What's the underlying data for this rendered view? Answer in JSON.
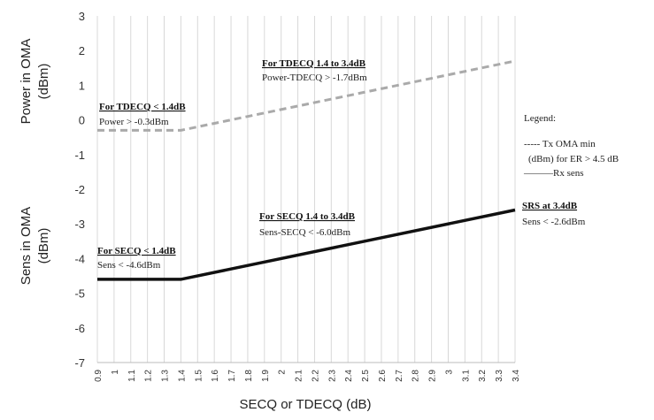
{
  "chart_data": {
    "type": "line",
    "xlabel": "SECQ or TDECQ (dB)",
    "ylabel_top": "Power  in OMA\n(dBm)",
    "ylabel_bottom": "Sens in OMA\n(dBm)",
    "x": [
      0.9,
      1.0,
      1.1,
      1.2,
      1.3,
      1.4,
      1.5,
      1.6,
      1.7,
      1.8,
      1.9,
      2.0,
      2.1,
      2.2,
      2.3,
      2.4,
      2.5,
      2.6,
      2.7,
      2.8,
      2.9,
      3.0,
      3.1,
      3.2,
      3.3,
      3.4
    ],
    "x_tick_labels": [
      "0.9",
      "1",
      "1.1",
      "1.2",
      "1.3",
      "1.4",
      "1.5",
      "1.6",
      "1.7",
      "1.8",
      "1.9",
      "2",
      "2.1",
      "2.2",
      "2.3",
      "2.4",
      "2.5",
      "2.6",
      "2.7",
      "2.8",
      "2.9",
      "3",
      "3.1",
      "3.2",
      "3.3",
      "3.4"
    ],
    "ylim": [
      -7,
      3
    ],
    "y_ticks": [
      3,
      2,
      1,
      0,
      -1,
      -2,
      -3,
      -4,
      -5,
      -6,
      -7
    ],
    "grid": "vertical",
    "series": [
      {
        "style": "dashed",
        "color": "#aaaaaa",
        "points": [
          [
            0.9,
            -0.3
          ],
          [
            1.4,
            -0.3
          ],
          [
            3.4,
            1.7
          ]
        ]
      },
      {
        "style": "solid",
        "color": "#111111",
        "points": [
          [
            0.9,
            -4.6
          ],
          [
            1.4,
            -4.6
          ],
          [
            3.4,
            -2.6
          ]
        ]
      }
    ],
    "annotations": [
      {
        "title": "For TDECQ 1.4 to 3.4dB",
        "text": "Power-TDECQ > -1.7dBm"
      },
      {
        "title": "For TDECQ < 1.4dB",
        "text": "Power > -0.3dBm"
      },
      {
        "title": "For SECQ 1.4 to 3.4dB",
        "text": "Sens-SECQ < -6.0dBm"
      },
      {
        "title": "For SECQ < 1.4dB",
        "text": "Sens < -4.6dBm"
      },
      {
        "title": "SRS at 3.4dB",
        "text": "Sens < -2.6dBm"
      }
    ],
    "legend": {
      "title": "Legend:",
      "line1": "----- Tx OMA min",
      "line2": "(dBm)  for ER > 4.5 dB",
      "line3": "———Rx sens",
      "placement": "right"
    }
  }
}
